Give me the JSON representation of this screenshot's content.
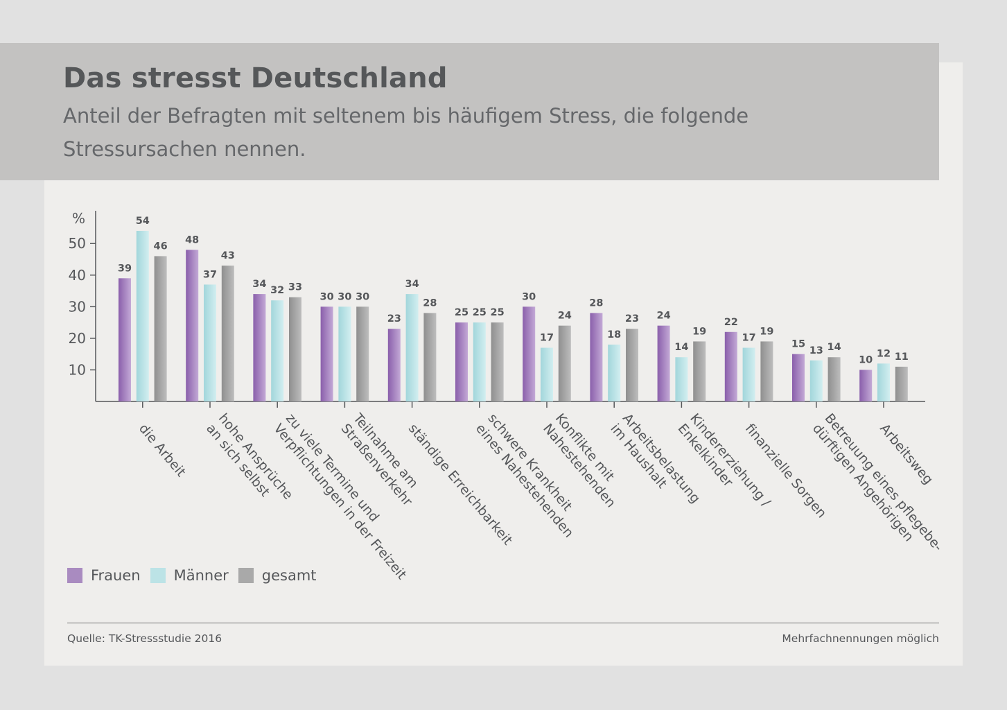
{
  "header": {
    "title": "Das stresst Deutschland",
    "subtitle": "Anteil der Befragten mit seltenem bis häufigem Stress, die folgende Stressursachen nennen."
  },
  "colors": {
    "frauen": "#a98bc0",
    "maenner": "#bce3e6",
    "gesamt": "#a9a9a9",
    "axis": "#55575a",
    "text": "#55575a"
  },
  "chart_data": {
    "type": "bar",
    "title": "Das stresst Deutschland",
    "ylabel": "%",
    "xlabel": "",
    "ylim": [
      0,
      60
    ],
    "yticks": [
      10,
      20,
      30,
      40,
      50
    ],
    "grid": false,
    "categories": [
      [
        "die Arbeit"
      ],
      [
        "hohe Ansprüche",
        "an sich selbst"
      ],
      [
        "zu viele Termine und",
        "Verpflichtungen in der Freizeit"
      ],
      [
        "Teilnahme am",
        "Straßenverkehr"
      ],
      [
        "ständige Erreichbarkeit"
      ],
      [
        "schwere Krankheit",
        "eines Nahestehenden"
      ],
      [
        "Konflikte mit",
        "Nahestehenden"
      ],
      [
        "Arbeitsbelastung",
        "im Haushalt"
      ],
      [
        "Kindererziehung /",
        "Enkelkinder"
      ],
      [
        "finanzielle Sorgen"
      ],
      [
        "Betreuung eines pflegebe-",
        "dürftigen Angehörigen"
      ],
      [
        "Arbeitsweg"
      ]
    ],
    "series": [
      {
        "name": "Frauen",
        "key": "frauen",
        "values": [
          39,
          48,
          34,
          30,
          23,
          25,
          30,
          28,
          24,
          22,
          15,
          10
        ]
      },
      {
        "name": "Männer",
        "key": "maenner",
        "values": [
          54,
          37,
          32,
          30,
          34,
          25,
          17,
          18,
          14,
          17,
          13,
          12
        ]
      },
      {
        "name": "gesamt",
        "key": "gesamt",
        "values": [
          46,
          43,
          33,
          30,
          28,
          25,
          24,
          23,
          19,
          19,
          14,
          11
        ]
      }
    ],
    "legend_position": "bottom-left"
  },
  "footer": {
    "source": "Quelle: TK-Stressstudie 2016",
    "note": "Mehrfachnennungen möglich"
  }
}
